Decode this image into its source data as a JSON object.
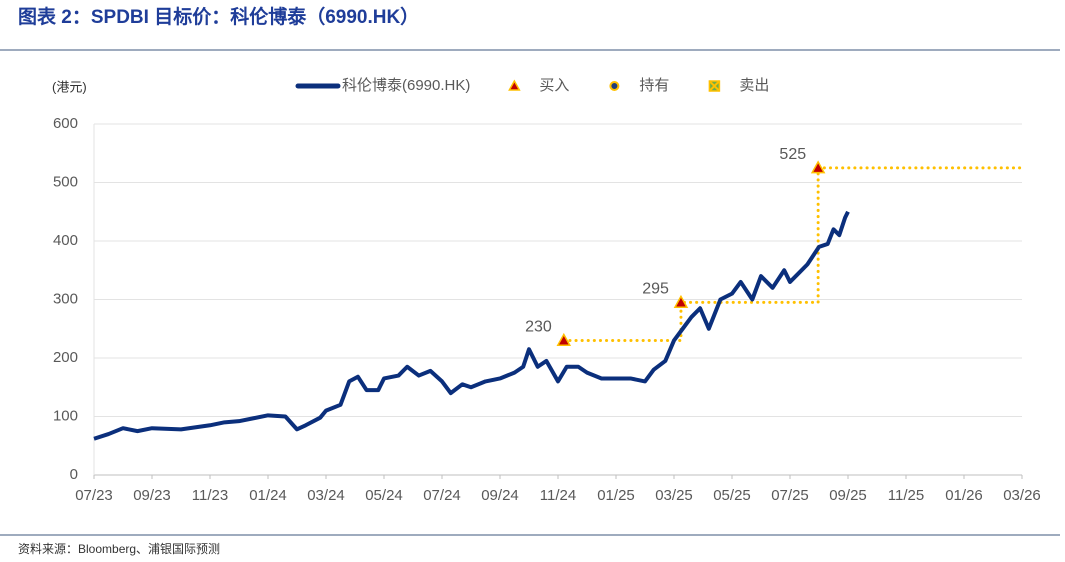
{
  "chart_data": {
    "type": "line",
    "title": "图表 2：SPDBI 目标价：科伦博泰（6990.HK）",
    "unit_label": "(港元)",
    "source": "资料来源：Bloomberg、浦银国际预测",
    "xlim": [
      0,
      32
    ],
    "xticks": [
      {
        "value": 0,
        "label": "07/23"
      },
      {
        "value": 2,
        "label": "09/23"
      },
      {
        "value": 4,
        "label": "11/23"
      },
      {
        "value": 6,
        "label": "01/24"
      },
      {
        "value": 8,
        "label": "03/24"
      },
      {
        "value": 10,
        "label": "05/24"
      },
      {
        "value": 12,
        "label": "07/24"
      },
      {
        "value": 14,
        "label": "09/24"
      },
      {
        "value": 16,
        "label": "11/24"
      },
      {
        "value": 18,
        "label": "01/25"
      },
      {
        "value": 20,
        "label": "03/25"
      },
      {
        "value": 22,
        "label": "05/25"
      },
      {
        "value": 24,
        "label": "07/25"
      },
      {
        "value": 26,
        "label": "09/25"
      },
      {
        "value": 28,
        "label": "11/25"
      },
      {
        "value": 30,
        "label": "01/26"
      },
      {
        "value": 32,
        "label": "03/26"
      }
    ],
    "ylim": [
      0,
      600
    ],
    "yticks": [
      0,
      100,
      200,
      300,
      400,
      500,
      600
    ],
    "grid": true,
    "series": [
      {
        "name": "科伦博泰(6990.HK)",
        "color": "#0b2f7c",
        "x": [
          0,
          0.5,
          1,
          1.5,
          2,
          3,
          4,
          4.5,
          5,
          5.5,
          6,
          6.6,
          7,
          7.3,
          7.8,
          8,
          8.5,
          8.8,
          9.1,
          9.4,
          9.8,
          10,
          10.5,
          10.8,
          11.2,
          11.6,
          12,
          12.3,
          12.7,
          13,
          13.5,
          14,
          14.5,
          14.8,
          15,
          15.3,
          15.6,
          16,
          16.3,
          16.7,
          17,
          17.5,
          18,
          18.5,
          19,
          19.3,
          19.7,
          20,
          20.3,
          20.6,
          20.9,
          21.2,
          21.6,
          22,
          22.3,
          22.7,
          23,
          23.4,
          23.8,
          24,
          24.3,
          24.6,
          25,
          25.3,
          25.5,
          25.7,
          25.9,
          26
        ],
        "values": [
          62,
          70,
          80,
          75,
          80,
          78,
          85,
          90,
          92,
          97,
          102,
          100,
          78,
          85,
          98,
          110,
          120,
          160,
          168,
          145,
          145,
          165,
          170,
          185,
          170,
          178,
          160,
          140,
          155,
          150,
          160,
          165,
          175,
          185,
          215,
          185,
          195,
          160,
          185,
          185,
          175,
          165,
          165,
          165,
          160,
          180,
          195,
          230,
          250,
          270,
          285,
          250,
          300,
          310,
          330,
          300,
          340,
          320,
          350,
          330,
          345,
          360,
          390,
          395,
          420,
          410,
          440,
          450
        ]
      }
    ],
    "markers": [
      {
        "name": "买入",
        "shape": "triangle",
        "color": "#c00000",
        "stroke": "#ffc000",
        "x": [
          16.2,
          20.24,
          24.97
        ],
        "values": [
          230,
          295,
          525
        ]
      },
      {
        "name": "持有",
        "shape": "circle",
        "color": "#1f3d7a",
        "stroke": "#ffc000",
        "x": [],
        "values": []
      },
      {
        "name": "卖出",
        "shape": "square",
        "color": "#70ad47",
        "stroke": "#ffc000",
        "x": [],
        "values": []
      }
    ],
    "target": {
      "color": "#ffc000",
      "x": [
        16.2,
        20.24,
        20.24,
        24.97,
        24.97,
        32
      ],
      "values": [
        230,
        230,
        295,
        295,
        525,
        525
      ]
    }
  }
}
